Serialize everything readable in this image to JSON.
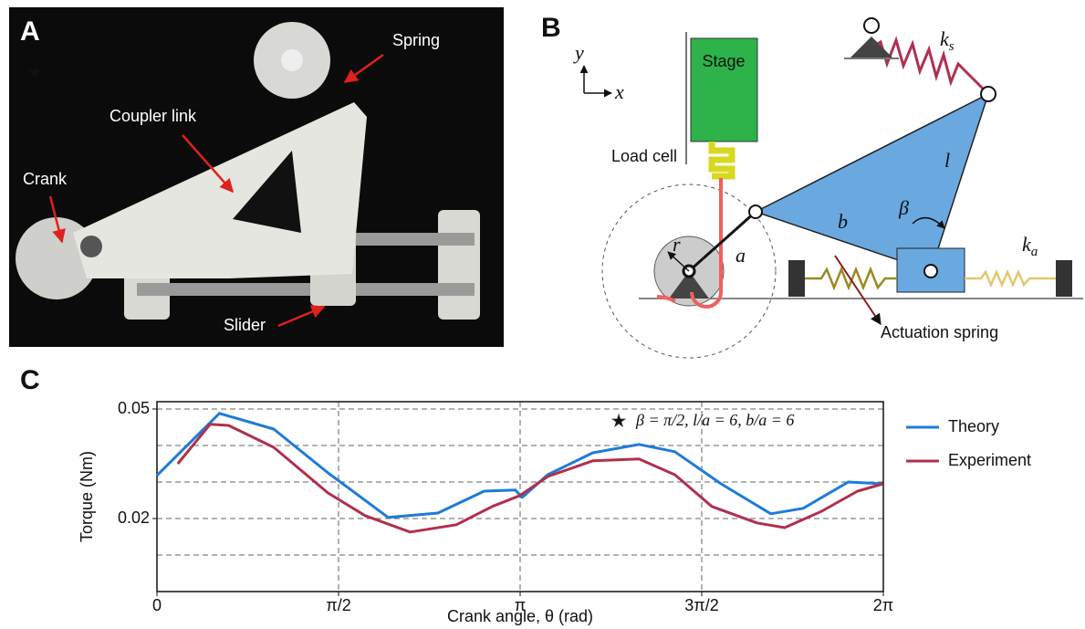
{
  "panel_a": {
    "label": "A",
    "spring": "Spring",
    "coupler": "Coupler link",
    "crank": "Crank",
    "slider": "Slider"
  },
  "panel_b": {
    "label": "B",
    "stage": "Stage",
    "load_cell": "Load cell",
    "axis_y": "y",
    "axis_x": "x",
    "ks": {
      "symbol": "k",
      "subscript": "s"
    },
    "ka": {
      "symbol": "k",
      "subscript": "a"
    },
    "l": "l",
    "beta": "β",
    "b": "b",
    "a": "a",
    "r": "r",
    "actuation": "Actuation spring"
  },
  "panel_c": {
    "label": "C"
  },
  "chart_data": {
    "type": "line",
    "annotation": "β = π/2,  l/a = 6,  b/a = 6",
    "xlabel": "Crank angle, θ (rad)",
    "ylabel": "Torque (Nm)",
    "xlim": [
      0,
      6.2832
    ],
    "ylim": [
      0,
      0.052
    ],
    "xticks": [
      0,
      {
        "value": 1.5708,
        "label": "π/2"
      },
      {
        "value": 3.1416,
        "label": "π"
      },
      {
        "value": 4.7124,
        "label": "3π/2"
      },
      {
        "value": 6.2832,
        "label": "2π"
      }
    ],
    "yticks": [
      0.02,
      0.05
    ],
    "grid_x": [
      1.5708,
      3.1416,
      4.7124
    ],
    "grid_y": [
      0.01,
      0.02,
      0.03,
      0.04,
      0.05
    ],
    "legend": "right",
    "series": [
      {
        "name": "Theory",
        "color": "#1f7bd8",
        "x": [
          0,
          0.54,
          1.01,
          1.48,
          2.0,
          2.43,
          2.83,
          3.1,
          3.16,
          3.38,
          3.77,
          4.17,
          4.48,
          4.88,
          5.31,
          5.59,
          5.98,
          6.28
        ],
        "values": [
          0.0318,
          0.0488,
          0.0445,
          0.0325,
          0.0203,
          0.0215,
          0.0275,
          0.0278,
          0.0258,
          0.032,
          0.038,
          0.0403,
          0.0383,
          0.0295,
          0.0213,
          0.0228,
          0.03,
          0.0295
        ]
      },
      {
        "name": "Experiment",
        "color": "#b0304f",
        "x": [
          0.18,
          0.46,
          0.62,
          1.01,
          1.48,
          1.8,
          2.19,
          2.59,
          2.9,
          3.14,
          3.38,
          3.77,
          4.17,
          4.48,
          4.8,
          5.19,
          5.43,
          5.75,
          6.06,
          6.28
        ],
        "values": [
          0.035,
          0.0458,
          0.0455,
          0.0395,
          0.027,
          0.0208,
          0.0163,
          0.0183,
          0.0233,
          0.0263,
          0.0315,
          0.0358,
          0.0363,
          0.032,
          0.0233,
          0.0188,
          0.0175,
          0.022,
          0.0275,
          0.0295
        ]
      }
    ]
  }
}
